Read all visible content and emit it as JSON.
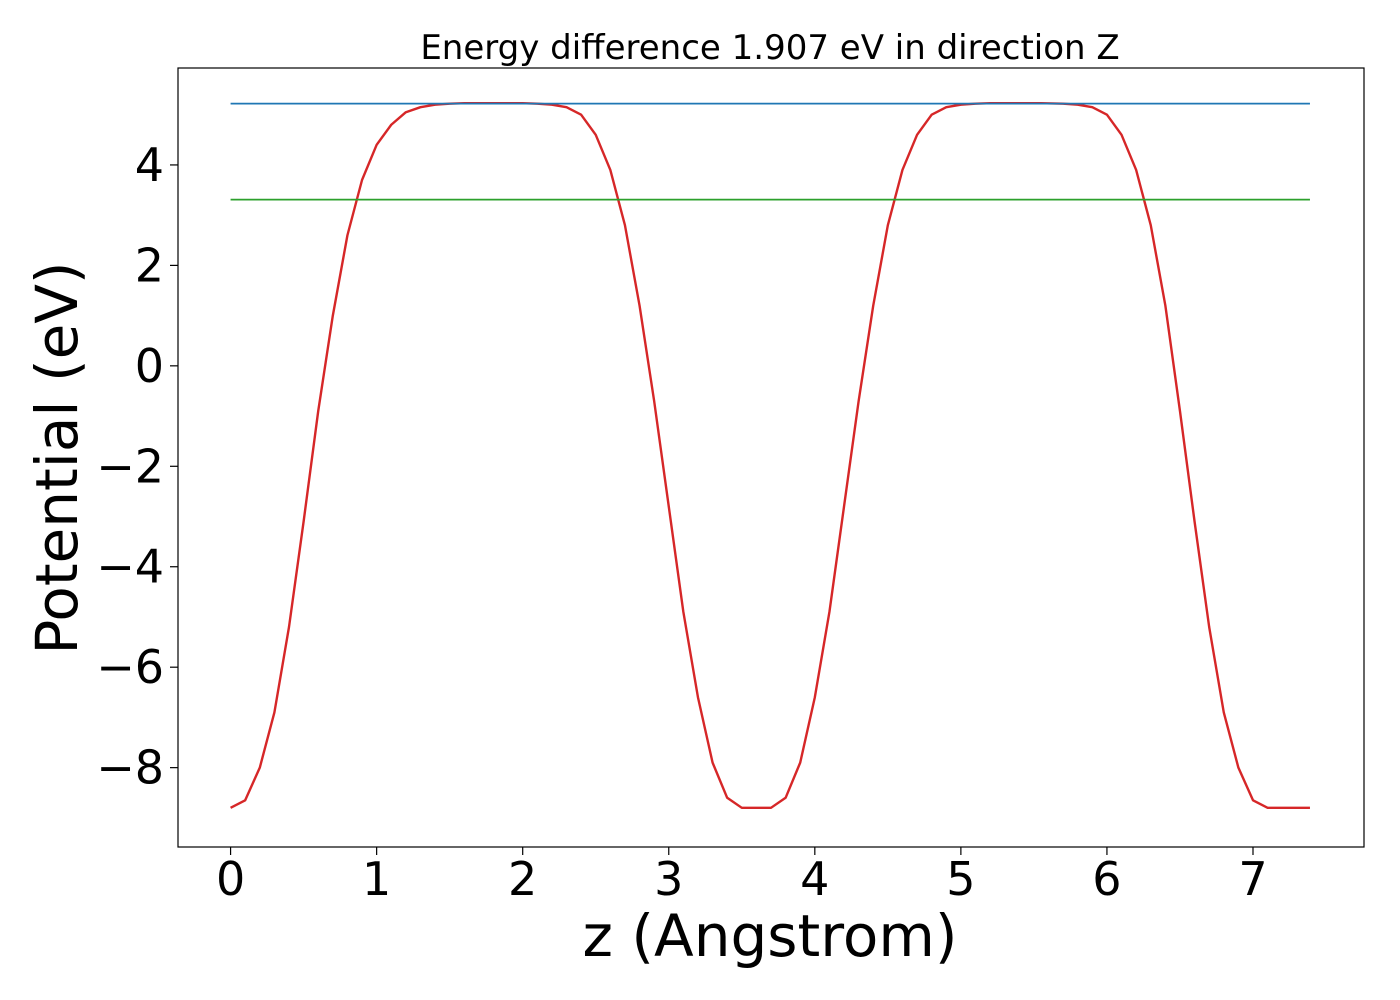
{
  "chart_data": {
    "type": "line",
    "title": "Energy difference 1.907 eV in direction Z",
    "xlabel": "z (Angstrom)",
    "ylabel": "Potential (eV)",
    "xlim": [
      -0.36,
      7.76
    ],
    "ylim": [
      -9.58,
      5.93
    ],
    "xticks": [
      0,
      1,
      2,
      3,
      4,
      5,
      6,
      7
    ],
    "yticks": [
      -8,
      -6,
      -4,
      -2,
      0,
      2,
      4
    ],
    "grid": false,
    "legend": "none",
    "series": [
      {
        "color": "#d62728",
        "x": [
          0,
          0.1,
          0.2,
          0.3,
          0.4,
          0.5,
          0.6,
          0.7,
          0.8,
          0.9,
          1.0,
          1.1,
          1.2,
          1.3,
          1.4,
          1.5,
          1.6,
          1.7,
          1.85,
          2.0,
          2.1,
          2.2,
          2.3,
          2.4,
          2.5,
          2.6,
          2.7,
          2.8,
          2.9,
          3.0,
          3.1,
          3.2,
          3.3,
          3.4,
          3.5,
          3.6,
          3.7,
          3.8,
          3.9,
          4.0,
          4.1,
          4.2,
          4.3,
          4.4,
          4.5,
          4.6,
          4.7,
          4.8,
          4.9,
          5.0,
          5.1,
          5.2,
          5.3,
          5.4,
          5.55,
          5.7,
          5.8,
          5.9,
          6.0,
          6.1,
          6.2,
          6.3,
          6.4,
          6.5,
          6.6,
          6.7,
          6.8,
          6.9,
          7.0,
          7.1,
          7.2,
          7.3,
          7.39
        ],
        "y": [
          -8.8,
          -8.65,
          -8.0,
          -6.9,
          -5.2,
          -3.1,
          -0.9,
          1.0,
          2.6,
          3.7,
          4.4,
          4.8,
          5.05,
          5.15,
          5.2,
          5.22,
          5.23,
          5.23,
          5.23,
          5.23,
          5.22,
          5.2,
          5.15,
          5.0,
          4.6,
          3.9,
          2.8,
          1.2,
          -0.7,
          -2.8,
          -4.9,
          -6.6,
          -7.9,
          -8.6,
          -8.8,
          -8.8,
          -8.8,
          -8.6,
          -7.9,
          -6.6,
          -4.9,
          -2.8,
          -0.7,
          1.2,
          2.8,
          3.9,
          4.6,
          5.0,
          5.15,
          5.2,
          5.22,
          5.23,
          5.23,
          5.23,
          5.23,
          5.22,
          5.2,
          5.15,
          5.0,
          4.6,
          3.9,
          2.8,
          1.2,
          -0.9,
          -3.1,
          -5.2,
          -6.9,
          -8.0,
          -8.65,
          -8.8,
          -8.8,
          -8.8,
          -8.8
        ]
      },
      {
        "color": "#1f77b4",
        "x": [
          0,
          7.39
        ],
        "y": [
          5.22,
          5.22
        ]
      },
      {
        "color": "#2ca02c",
        "x": [
          0,
          7.39
        ],
        "y": [
          3.31,
          3.31
        ]
      }
    ]
  }
}
